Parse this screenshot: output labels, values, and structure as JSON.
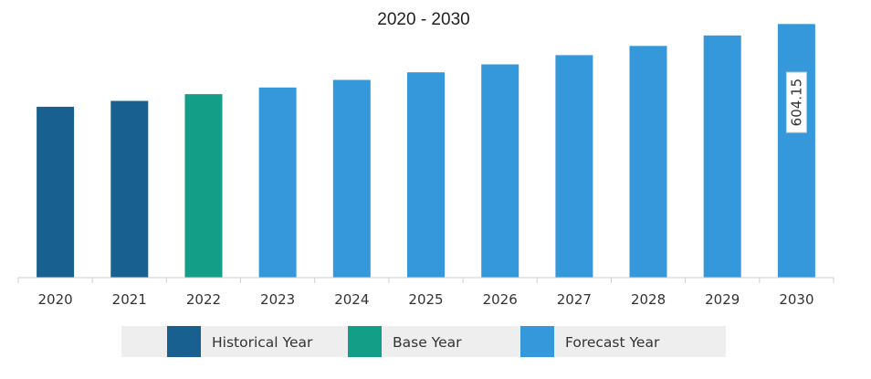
{
  "chart_data": {
    "type": "bar",
    "title": "2020 - 2030",
    "xlabel": "",
    "ylabel": "",
    "categories": [
      "2020",
      "2021",
      "2022",
      "2023",
      "2024",
      "2025",
      "2026",
      "2027",
      "2028",
      "2029",
      "2030"
    ],
    "values": [
      407,
      421,
      437,
      453,
      471,
      489,
      508,
      530,
      552,
      577,
      604.15
    ],
    "segment": [
      "Historical Year",
      "Historical Year",
      "Base Year",
      "Forecast Year",
      "Forecast Year",
      "Forecast Year",
      "Forecast Year",
      "Forecast Year",
      "Forecast Year",
      "Forecast Year",
      "Forecast Year"
    ],
    "data_labels": [
      null,
      null,
      null,
      null,
      null,
      null,
      null,
      null,
      null,
      null,
      "604.15"
    ],
    "ylim": [
      0,
      620
    ],
    "grid": false,
    "legend": {
      "placement": "bottom",
      "items": [
        {
          "label": "Historical Year",
          "color": "#17608f"
        },
        {
          "label": "Base Year",
          "color": "#139e88"
        },
        {
          "label": "Forecast Year",
          "color": "#3498db"
        }
      ]
    }
  }
}
